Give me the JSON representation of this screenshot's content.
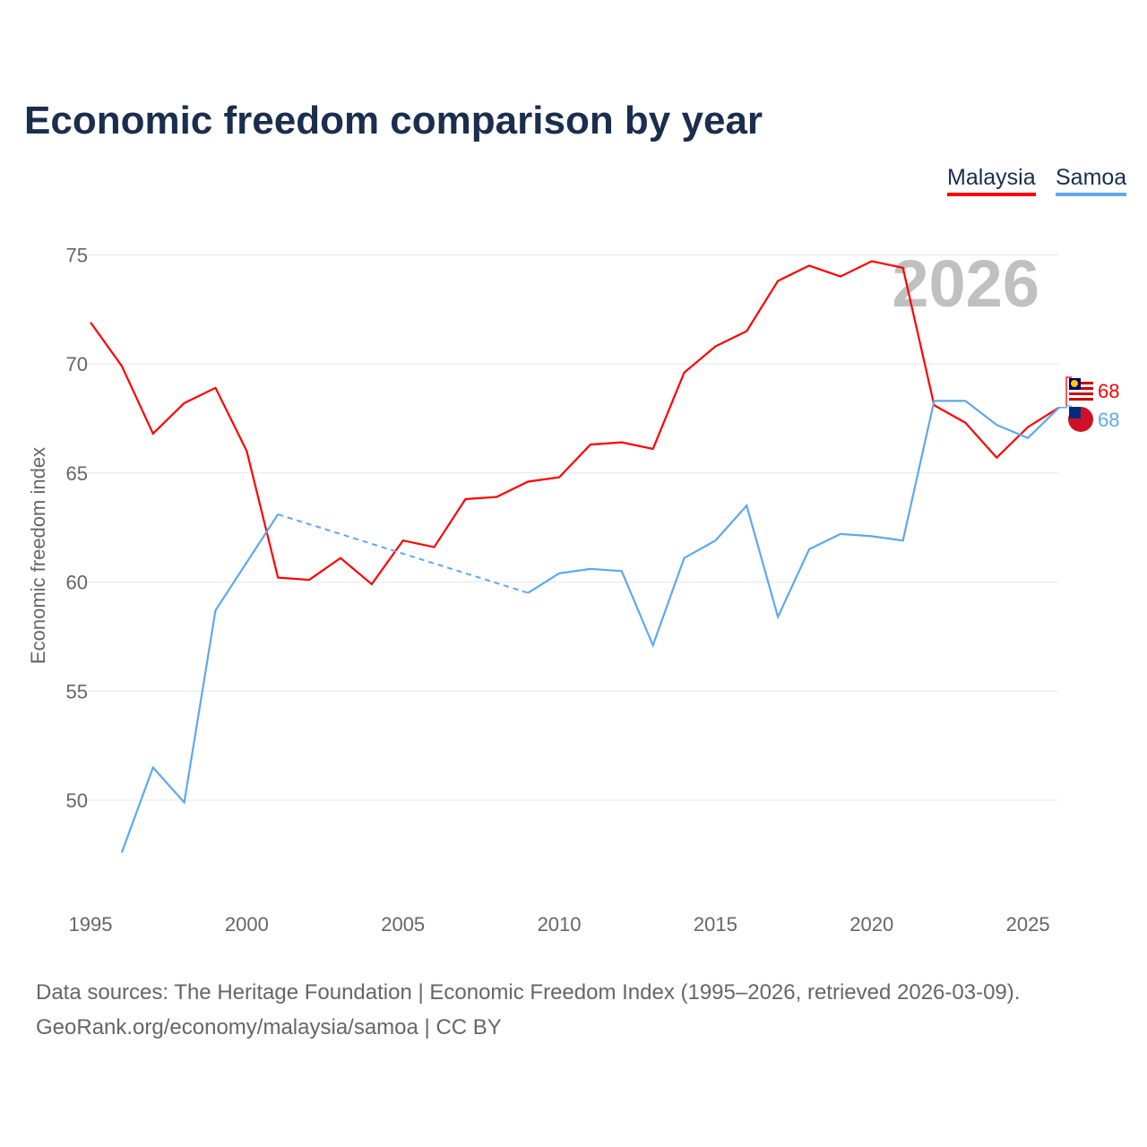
{
  "title": "Economic freedom comparison by year",
  "legend": {
    "malaysia": "Malaysia",
    "samoa": "Samoa"
  },
  "footer": {
    "line1": "Data sources: The Heritage Foundation | Economic Freedom Index (1995–2026, retrieved 2026-03-09).",
    "line2": "GeoRank.org/economy/malaysia/samoa | CC BY"
  },
  "chart_data": {
    "type": "line",
    "title": "Economic freedom comparison by year",
    "ylabel": "Economic freedom index",
    "xlabel": "",
    "year_watermark": "2026",
    "xlim": [
      1995,
      2026
    ],
    "ylim": [
      45,
      77
    ],
    "xticks": [
      1995,
      2000,
      2005,
      2010,
      2015,
      2020,
      2025
    ],
    "yticks": [
      50,
      55,
      60,
      65,
      70,
      75
    ],
    "x": [
      1995,
      1996,
      1997,
      1998,
      1999,
      2000,
      2001,
      2002,
      2003,
      2004,
      2005,
      2006,
      2007,
      2008,
      2009,
      2010,
      2011,
      2012,
      2013,
      2014,
      2015,
      2016,
      2017,
      2018,
      2019,
      2020,
      2021,
      2022,
      2023,
      2024,
      2025,
      2026
    ],
    "series": [
      {
        "name": "Malaysia",
        "color": "#ff0000",
        "end_label": "68",
        "values": [
          71.9,
          69.9,
          66.8,
          68.2,
          68.9,
          66.0,
          60.2,
          60.1,
          61.1,
          59.9,
          61.9,
          61.6,
          63.8,
          63.9,
          64.6,
          64.8,
          66.3,
          66.4,
          66.1,
          69.6,
          70.8,
          71.5,
          73.8,
          74.5,
          74.0,
          74.7,
          74.4,
          68.1,
          67.3,
          65.7,
          67.1,
          68.0
        ]
      },
      {
        "name": "Samoa",
        "color": "#5ea8f0",
        "end_label": "68",
        "values": [
          null,
          47.6,
          51.5,
          49.9,
          58.7,
          60.9,
          63.1,
          null,
          null,
          null,
          null,
          null,
          null,
          null,
          59.5,
          60.4,
          60.6,
          60.5,
          57.1,
          61.1,
          61.9,
          63.5,
          58.4,
          61.5,
          62.2,
          62.1,
          61.9,
          68.3,
          68.3,
          67.2,
          66.6,
          68.0
        ]
      }
    ]
  }
}
